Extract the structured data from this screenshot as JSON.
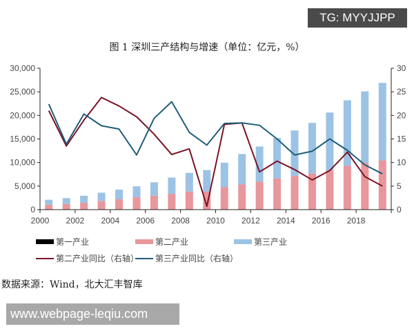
{
  "watermark_top": "TG: MYYJJPP",
  "watermark_bottom": "www.webpage-leqiu.com",
  "source": "数据来源：Wind，北大汇丰智库",
  "chart_data": {
    "type": "bar+line",
    "title": "图 1 深圳三产结构与增速（单位：亿元，%）",
    "categories": [
      "2000",
      "2001",
      "2002",
      "2003",
      "2004",
      "2005",
      "2006",
      "2007",
      "2008",
      "2009",
      "2010",
      "2011",
      "2012",
      "2013",
      "2014",
      "2015",
      "2016",
      "2017",
      "2018",
      "2019"
    ],
    "x_tick_labels": [
      "2000",
      "2002",
      "2004",
      "2006",
      "2008",
      "2010",
      "2012",
      "2014",
      "2016",
      "2018"
    ],
    "y_left": {
      "ylim": [
        0,
        30000
      ],
      "ticks": [
        "0",
        "5,000",
        "10,000",
        "15,000",
        "20,000",
        "25,000",
        "30,000"
      ]
    },
    "y_right": {
      "ylim": [
        0,
        30
      ],
      "ticks": [
        "0",
        "5",
        "10",
        "15",
        "20",
        "25",
        "30"
      ]
    },
    "colors": {
      "primary": "#000000",
      "secondary": "#e8979c",
      "tertiary": "#9cc3e5",
      "secondary_growth": "#7a1225",
      "tertiary_growth": "#1f5d78"
    },
    "legend": {
      "primary": "第一产业",
      "secondary": "第二产业",
      "tertiary": "第三产业",
      "secondary_growth": "第二产业同比（右轴）",
      "tertiary_growth": "第三产业同比（右轴）"
    },
    "legend_position": "bottom",
    "series": [
      {
        "name": "第二产业",
        "type": "bar",
        "stack": 1,
        "axis": "left",
        "values": [
          1050,
          1200,
          1450,
          1850,
          2200,
          2650,
          2950,
          3350,
          3850,
          3850,
          4750,
          5350,
          5950,
          6600,
          7150,
          7700,
          8350,
          9300,
          9950,
          10450
        ]
      },
      {
        "name": "第三产业",
        "type": "bar",
        "stack": 1,
        "axis": "left",
        "values": [
          1050,
          1250,
          1500,
          1750,
          2050,
          2300,
          2850,
          3450,
          3950,
          4550,
          5200,
          6450,
          7450,
          8600,
          9650,
          10700,
          12250,
          13900,
          15150,
          16450
        ]
      },
      {
        "name": "第二产业同比（右轴）",
        "type": "line",
        "axis": "right",
        "values": [
          21,
          13.5,
          19,
          23.8,
          22,
          19.7,
          16,
          11.7,
          12.9,
          0.7,
          18.1,
          18.4,
          8,
          10.3,
          8.5,
          6.3,
          8.3,
          12.2,
          7,
          5
        ]
      },
      {
        "name": "第三产业同比（右轴）",
        "type": "line",
        "axis": "right",
        "values": [
          22.4,
          13.9,
          20.3,
          17.8,
          17.1,
          11.6,
          19.4,
          22.9,
          16.4,
          13.7,
          18.3,
          18.4,
          17.9,
          15,
          11.6,
          12.4,
          15,
          12.6,
          9.5,
          7.6
        ]
      }
    ]
  }
}
